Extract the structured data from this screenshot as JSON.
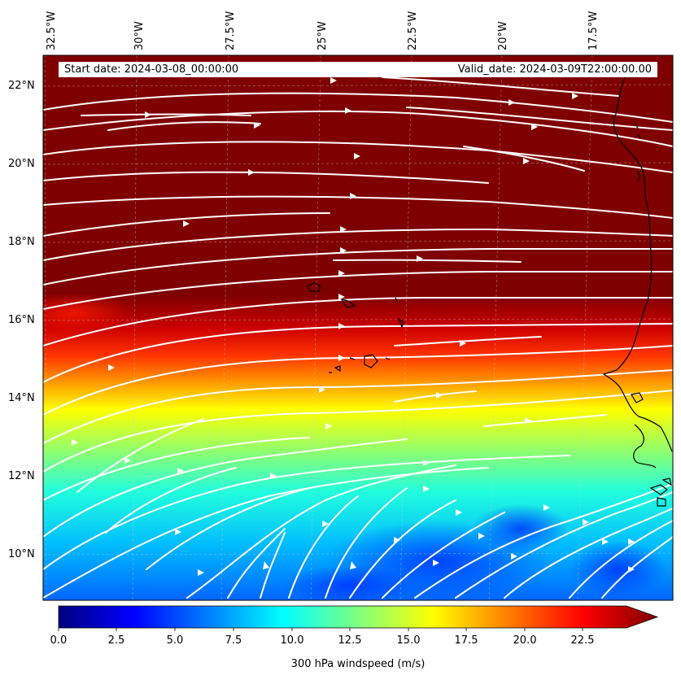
{
  "map": {
    "title_start": "Start date: 2024-03-08_00:00:00",
    "title_valid": "Valid_date: 2024-03-09T22:00:00.00",
    "lon_labels": [
      "32.5°W",
      "30°W",
      "27.5°W",
      "25°W",
      "22.5°W",
      "20°W",
      "17.5°W"
    ],
    "lat_labels": [
      "22°N",
      "20°N",
      "18°N",
      "16°N",
      "14°N",
      "12°N",
      "10°N"
    ],
    "variable": "300 hPa windspeed",
    "units": "m/s"
  },
  "colorbar": {
    "label": "300 hPa windspeed (m/s)",
    "ticks": [
      "0.0",
      "2.5",
      "5.0",
      "7.5",
      "10.0",
      "12.5",
      "15.0",
      "17.5",
      "20.0",
      "22.5"
    ],
    "min": 0,
    "max": 25,
    "extend": "max",
    "colors": [
      "#00007f",
      "#0000ff",
      "#007fff",
      "#00ffff",
      "#7fff7f",
      "#ffff00",
      "#ff7f00",
      "#ff0000",
      "#7f0000"
    ]
  },
  "colors": {
    "streamline": "#ffffff",
    "coastline": "#000000",
    "gridline": "#cccccc"
  }
}
